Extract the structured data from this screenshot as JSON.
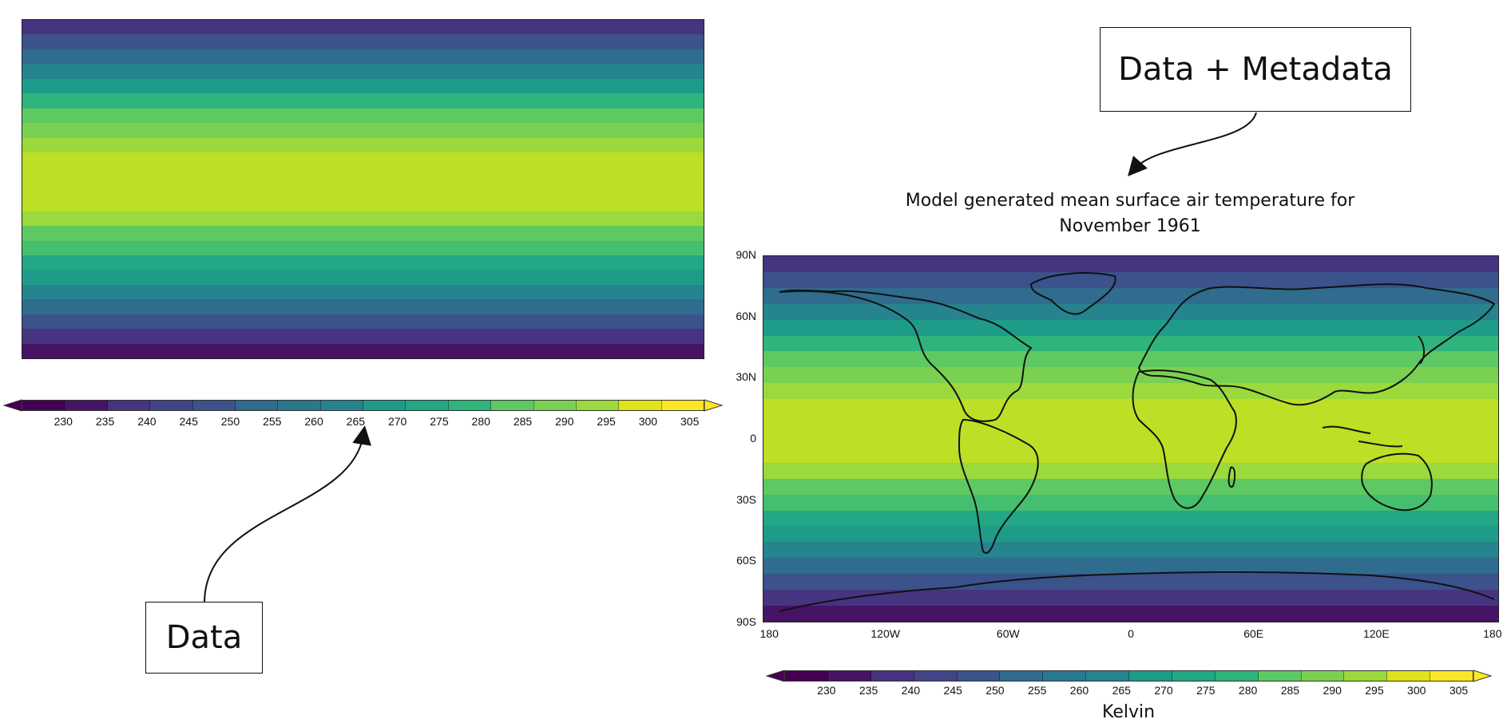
{
  "left_panel": {
    "colorbar_ticks": [
      "230",
      "235",
      "240",
      "245",
      "250",
      "255",
      "260",
      "265",
      "270",
      "275",
      "280",
      "285",
      "290",
      "295",
      "300",
      "305"
    ],
    "annotation": "Data"
  },
  "right_panel": {
    "annotation": "Data + Metadata",
    "title_line1": "Model generated mean surface air temperature for",
    "title_line2": "November 1961",
    "lat_ticks": [
      "90N",
      "60N",
      "30N",
      "0",
      "30S",
      "60S",
      "90S"
    ],
    "lon_ticks": [
      "180",
      "120W",
      "60W",
      "0",
      "60E",
      "120E",
      "180"
    ],
    "colorbar_ticks": [
      "230",
      "235",
      "240",
      "245",
      "250",
      "255",
      "260",
      "265",
      "270",
      "275",
      "280",
      "285",
      "290",
      "295",
      "300",
      "305"
    ],
    "colorbar_unit": "Kelvin"
  },
  "colormap": {
    "name": "viridis",
    "stops": [
      "#440154",
      "#471365",
      "#482475",
      "#463480",
      "#414487",
      "#3b528b",
      "#355f8d",
      "#2f6c8e",
      "#2a788e",
      "#25848e",
      "#21918c",
      "#1e9c89",
      "#22a884",
      "#2fb47c",
      "#44bf70",
      "#5ec962",
      "#7ad151",
      "#9bd93c",
      "#bddf26",
      "#dfe318",
      "#fde725"
    ]
  },
  "chart_data": [
    {
      "type": "heatmap",
      "title": "",
      "colorbar_range": [
        230,
        305
      ],
      "colorbar_ticks": [
        230,
        235,
        240,
        245,
        250,
        255,
        260,
        265,
        270,
        275,
        280,
        285,
        290,
        295,
        300,
        305
      ],
      "lat_band_values_north_to_south": [
        240,
        247,
        255,
        262,
        270,
        278,
        285,
        290,
        294,
        297,
        299,
        299,
        297,
        293,
        288,
        282,
        276,
        270,
        263,
        257,
        250,
        241,
        235
      ]
    },
    {
      "type": "heatmap",
      "title": "Model generated mean surface air temperature for November 1961",
      "xlabel": "",
      "ylabel": "",
      "xticks": [
        "180",
        "120W",
        "60W",
        "0",
        "60E",
        "120E",
        "180"
      ],
      "yticks": [
        "90N",
        "60N",
        "30N",
        "0",
        "30S",
        "60S",
        "90S"
      ],
      "colorbar_label": "Kelvin",
      "colorbar_range": [
        230,
        305
      ],
      "colorbar_ticks": [
        230,
        235,
        240,
        245,
        250,
        255,
        260,
        265,
        270,
        275,
        280,
        285,
        290,
        295,
        300,
        305
      ],
      "lat_band_values_north_to_south": [
        240,
        247,
        255,
        262,
        270,
        278,
        285,
        290,
        294,
        297,
        299,
        299,
        297,
        293,
        288,
        282,
        276,
        270,
        263,
        257,
        250,
        241,
        235
      ]
    }
  ]
}
